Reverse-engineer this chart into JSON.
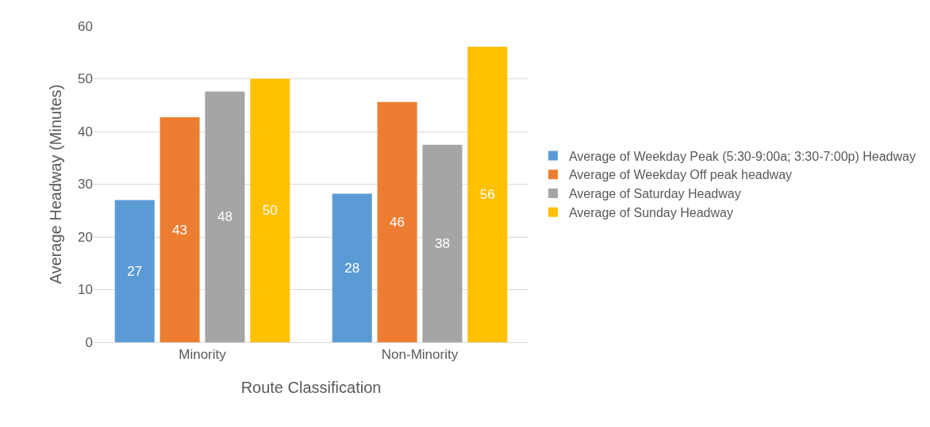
{
  "chart_data": {
    "type": "bar",
    "xlabel": "Route Classification",
    "ylabel": "Average Headway (Minutes)",
    "categories": [
      "Minority",
      "Non-Minority"
    ],
    "series": [
      {
        "name": "Average of Weekday Peak (5:30-9:00a; 3:30-7:00p) Headway",
        "color": "#5b9bd5",
        "values": [
          27,
          28.2
        ],
        "value_labels": [
          "27",
          "28"
        ]
      },
      {
        "name": "Average of Weekday Off peak headway",
        "color": "#ed7d31",
        "values": [
          42.7,
          45.6
        ],
        "value_labels": [
          "43",
          "46"
        ]
      },
      {
        "name": "Average of Saturday Headway",
        "color": "#a5a5a5",
        "values": [
          47.6,
          37.5
        ],
        "value_labels": [
          "48",
          "38"
        ]
      },
      {
        "name": "Average of Sunday Headway",
        "color": "#ffc000",
        "values": [
          50,
          56.1
        ],
        "value_labels": [
          "50",
          "56"
        ]
      }
    ],
    "ylim": [
      0,
      60
    ],
    "yticks": [
      0,
      10,
      20,
      30,
      40,
      50,
      60
    ],
    "grid": "y",
    "legend": "right"
  }
}
